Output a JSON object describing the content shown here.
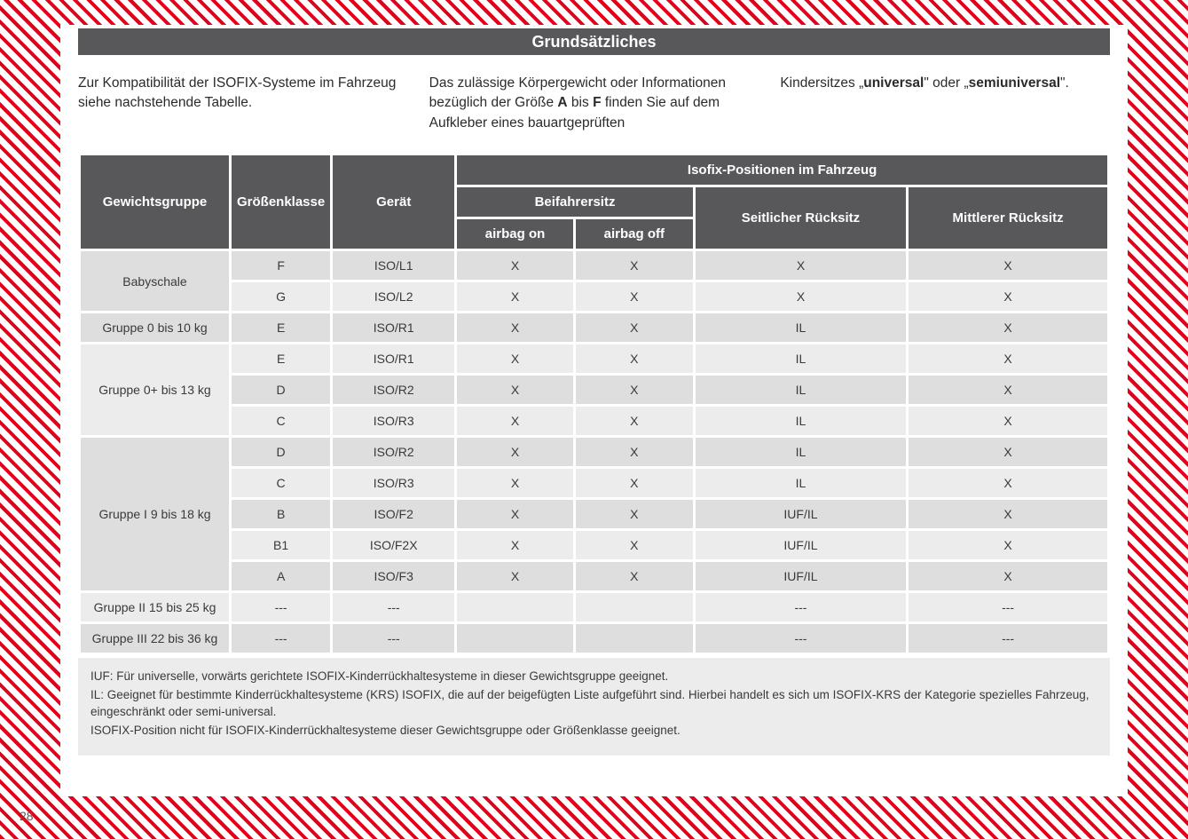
{
  "page_number": "28",
  "title": "Grundsätzliches",
  "intro": {
    "col1": "Zur Kompatibilität der ISOFIX-Systeme im Fahrzeug siehe nachstehende Tabelle.",
    "col2_a": "Das zulässige Körpergewicht oder Informationen bezüglich der Größe ",
    "col2_b": "A",
    "col2_c": " bis ",
    "col2_d": "F",
    "col2_e": " finden Sie auf dem Aufkleber eines bauartgeprüften",
    "col3_a": "Kindersitzes „",
    "col3_b": "universal",
    "col3_c": "\" oder „",
    "col3_d": "semiuniversal",
    "col3_e": "\"."
  },
  "headers": {
    "weight_group": "Gewichtsgruppe",
    "size_class": "Größenklasse",
    "device": "Gerät",
    "isofix_positions": "Isofix-Positionen im Fahrzeug",
    "front_seat": "Beifahrersitz",
    "side_rear": "Seitlicher Rücksitz",
    "center_rear": "Mittlerer Rücksitz",
    "airbag_on": "airbag on",
    "airbag_off": "airbag off"
  },
  "groups": [
    {
      "label": "Babyschale",
      "rows": [
        {
          "size": "F",
          "device": "ISO/L1",
          "on": "X",
          "off": "X",
          "side": "X",
          "center": "X",
          "odd": true
        },
        {
          "size": "G",
          "device": "ISO/L2",
          "on": "X",
          "off": "X",
          "side": "X",
          "center": "X",
          "odd": false
        }
      ]
    },
    {
      "label": "Gruppe 0 bis 10 kg",
      "rows": [
        {
          "size": "E",
          "device": "ISO/R1",
          "on": "X",
          "off": "X",
          "side": "IL",
          "center": "X",
          "odd": true
        }
      ]
    },
    {
      "label": "Gruppe 0+ bis 13 kg",
      "rows": [
        {
          "size": "E",
          "device": "ISO/R1",
          "on": "X",
          "off": "X",
          "side": "IL",
          "center": "X",
          "odd": false
        },
        {
          "size": "D",
          "device": "ISO/R2",
          "on": "X",
          "off": "X",
          "side": "IL",
          "center": "X",
          "odd": true
        },
        {
          "size": "C",
          "device": "ISO/R3",
          "on": "X",
          "off": "X",
          "side": "IL",
          "center": "X",
          "odd": false
        }
      ]
    },
    {
      "label": "Gruppe I 9 bis 18 kg",
      "rows": [
        {
          "size": "D",
          "device": "ISO/R2",
          "on": "X",
          "off": "X",
          "side": "IL",
          "center": "X",
          "odd": true
        },
        {
          "size": "C",
          "device": "ISO/R3",
          "on": "X",
          "off": "X",
          "side": "IL",
          "center": "X",
          "odd": false
        },
        {
          "size": "B",
          "device": "ISO/F2",
          "on": "X",
          "off": "X",
          "side": "IUF/IL",
          "center": "X",
          "odd": true
        },
        {
          "size": "B1",
          "device": "ISO/F2X",
          "on": "X",
          "off": "X",
          "side": "IUF/IL",
          "center": "X",
          "odd": false
        },
        {
          "size": "A",
          "device": "ISO/F3",
          "on": "X",
          "off": "X",
          "side": "IUF/IL",
          "center": "X",
          "odd": true
        }
      ]
    },
    {
      "label": "Gruppe II 15 bis 25 kg",
      "rows": [
        {
          "size": "---",
          "device": "---",
          "on": "",
          "off": "",
          "side": "---",
          "center": "---",
          "odd": false
        }
      ]
    },
    {
      "label": "Gruppe III 22 bis 36 kg",
      "rows": [
        {
          "size": "---",
          "device": "---",
          "on": "",
          "off": "",
          "side": "---",
          "center": "---",
          "odd": true
        }
      ]
    }
  ],
  "legend": {
    "l1": "IUF: Für universelle, vorwärts gerichtete ISOFIX-Kinderrückhaltesysteme in dieser Gewichtsgruppe geeignet.",
    "l2": "IL: Geeignet für bestimmte Kinderrückhaltesysteme (KRS) ISOFIX, die auf der beigefügten Liste aufgeführt sind. Hierbei handelt es sich um ISOFIX-KRS der Kategorie spezielles Fahrzeug, eingeschränkt oder semi-universal.",
    "l3": "ISOFIX-Position nicht für ISOFIX-Kinderrückhaltesysteme dieser Gewichtsgruppe oder Größenklasse geeignet."
  },
  "col_widths": {
    "label": 170,
    "size": 110,
    "device": 140
  },
  "colors": {
    "hatch_red": "#e2001a",
    "header_bg": "#58585a",
    "row_light": "#ececec",
    "row_dark": "#dedede",
    "text": "#2b2b2b"
  }
}
